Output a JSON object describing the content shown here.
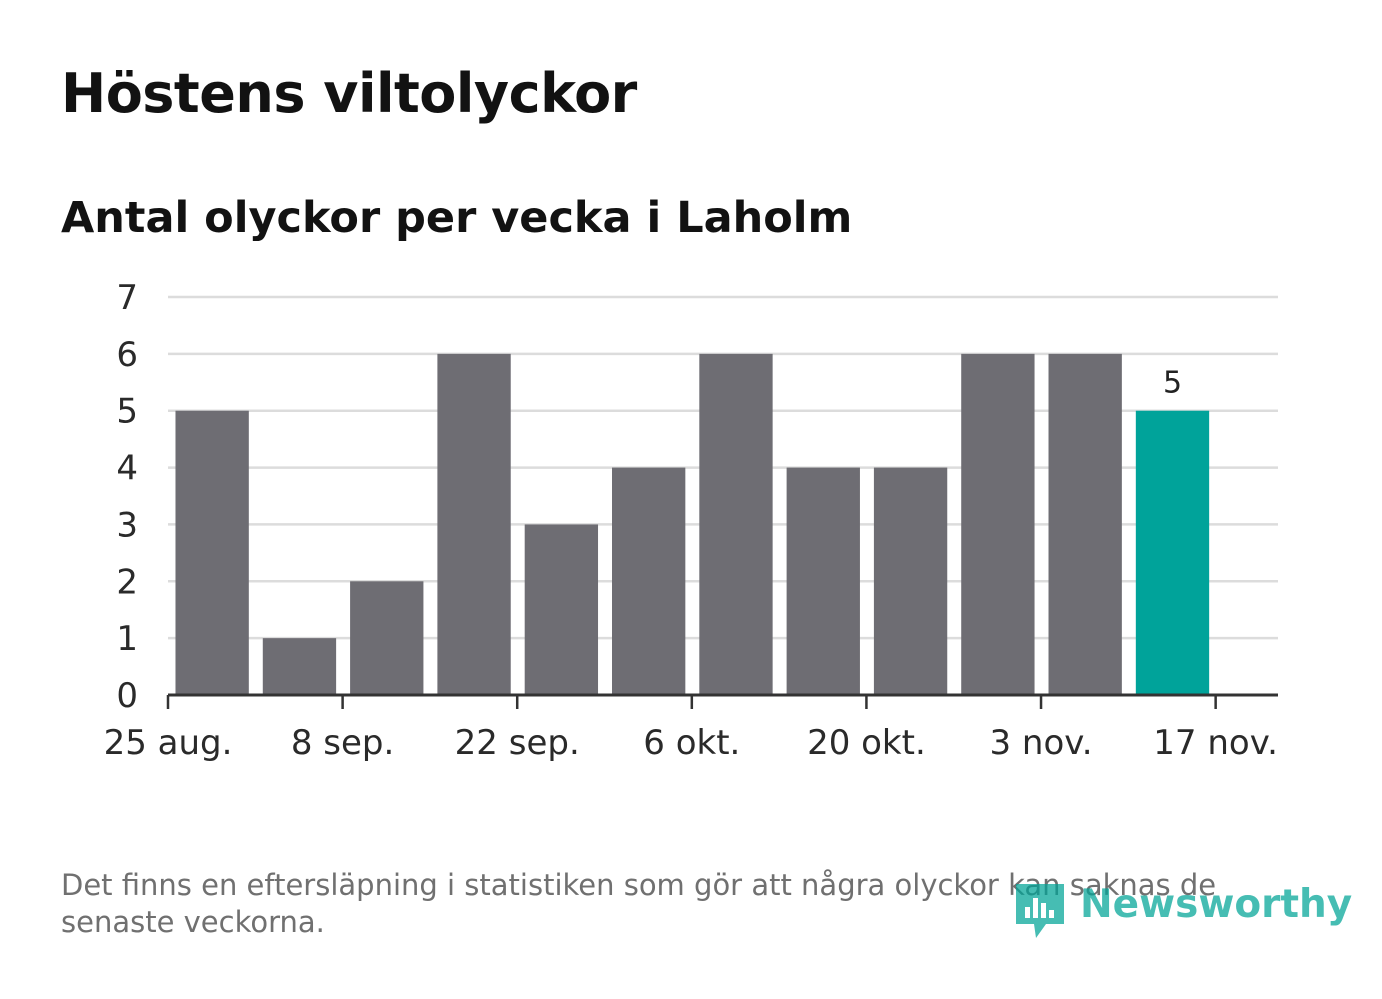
{
  "title": "Höstens viltolyckor",
  "subtitle": "Antal olyckor per vecka i Laholm",
  "footnote": "Det finns en eftersläpning i statistiken som gör att några olyckor kan saknas de senaste veckorna.",
  "logo": {
    "text": "Newsworthy",
    "icon": "bar-chart-badge-icon"
  },
  "colors": {
    "bar": "#6e6d73",
    "highlight": "#00a39a",
    "grid": "#dcdcdc",
    "axis": "#333333"
  },
  "chart_data": {
    "type": "bar",
    "x": [
      "2019-09-01",
      "2019-09-08",
      "2019-09-15",
      "2019-09-22",
      "2019-09-29",
      "2019-10-06",
      "2019-10-13",
      "2019-10-20",
      "2019-10-27",
      "2019-11-03",
      "2019-11-10",
      "2019-11-17"
    ],
    "values": [
      5,
      1,
      2,
      6,
      3,
      4,
      6,
      4,
      4,
      6,
      6,
      5
    ],
    "highlight_index": 11,
    "data_labels": [
      {
        "index": 11,
        "text": "5"
      }
    ],
    "ylim": [
      0,
      7
    ],
    "y_ticks": [
      0,
      1,
      2,
      3,
      4,
      5,
      6,
      7
    ],
    "x_ticks": [
      {
        "date": "2019-08-25",
        "label": "25 aug."
      },
      {
        "date": "2019-09-08",
        "label": "8 sep."
      },
      {
        "date": "2019-09-22",
        "label": "22 sep."
      },
      {
        "date": "2019-10-06",
        "label": "6 okt."
      },
      {
        "date": "2019-10-20",
        "label": "20 okt."
      },
      {
        "date": "2019-11-03",
        "label": "3 nov."
      },
      {
        "date": "2019-11-17",
        "label": "17 nov."
      }
    ],
    "xlim": [
      "2019-08-25",
      "2019-11-22"
    ],
    "grid": true,
    "xlabel": "",
    "ylabel": ""
  }
}
